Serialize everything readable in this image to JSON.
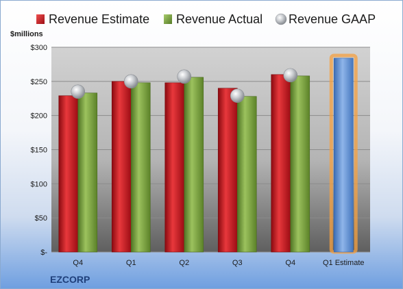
{
  "chart_data": {
    "type": "bar",
    "title": "",
    "ylabel": "$millions",
    "xlabel": "",
    "company": "EZCORP",
    "categories": [
      "Q4",
      "Q1",
      "Q2",
      "Q3",
      "Q4",
      "Q1 Estimate"
    ],
    "series": [
      {
        "name": "Revenue Estimate",
        "kind": "bar",
        "color": "#c8141c",
        "values": [
          229,
          250,
          248,
          240,
          260,
          null
        ]
      },
      {
        "name": "Revenue Actual",
        "kind": "bar",
        "color": "#77a03b",
        "values": [
          233,
          248,
          256,
          228,
          258,
          null
        ]
      },
      {
        "name": "Revenue GAAP",
        "kind": "marker",
        "color": "#b8bcc2",
        "values": [
          235,
          250,
          257,
          229,
          259,
          null
        ]
      }
    ],
    "estimate": {
      "category": "Q1 Estimate",
      "value": 284,
      "color": "#5b8fd4",
      "glow": "#f5a040"
    },
    "ylim": [
      0,
      300
    ],
    "yticks": [
      0,
      50,
      100,
      150,
      200,
      250,
      300
    ],
    "ytick_labels": [
      "$-",
      "$50",
      "$100",
      "$150",
      "$200",
      "$250",
      "$300"
    ],
    "legend": "top",
    "grid": true
  }
}
